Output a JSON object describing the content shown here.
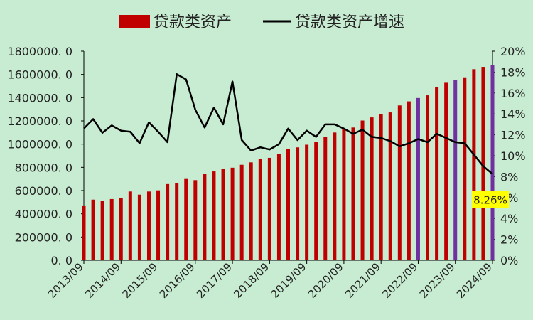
{
  "colors": {
    "background": "#c8ecd2",
    "bar": "#c00000",
    "bar_highlight": "#7030a0",
    "line": "#000000",
    "callout_bg": "#ffff00",
    "axis": "#000000",
    "text": "#222222"
  },
  "chart_data": {
    "type": "bar",
    "legend": [
      "贷款类资产",
      "贷款类资产增速"
    ],
    "legend_position": "top",
    "grid": false,
    "x": [
      "2013/09",
      "2013/12",
      "2014/03",
      "2014/06",
      "2014/09",
      "2014/12",
      "2015/03",
      "2015/06",
      "2015/09",
      "2015/12",
      "2016/03",
      "2016/06",
      "2016/09",
      "2016/12",
      "2017/03",
      "2017/06",
      "2017/09",
      "2017/12",
      "2018/03",
      "2018/06",
      "2018/09",
      "2018/12",
      "2019/03",
      "2019/06",
      "2019/09",
      "2019/12",
      "2020/03",
      "2020/06",
      "2020/09",
      "2020/12",
      "2021/03",
      "2021/06",
      "2021/09",
      "2021/12",
      "2022/03",
      "2022/06",
      "2022/09",
      "2022/12",
      "2023/03",
      "2023/06",
      "2023/09",
      "2023/12",
      "2024/03",
      "2024/06",
      "2024/09"
    ],
    "x_tick_labels": [
      "2013/09",
      "2014/09",
      "2015/09",
      "2016/09",
      "2017/09",
      "2018/09",
      "2019/09",
      "2020/09",
      "2021/09",
      "2022/09",
      "2023/09",
      "2024/09"
    ],
    "series": [
      {
        "name": "贷款类资产",
        "type": "bar",
        "axis": "left",
        "values": [
          472000,
          522000,
          510000,
          527000,
          537000,
          592000,
          565000,
          592000,
          602000,
          656000,
          665000,
          700000,
          690000,
          742000,
          765000,
          787000,
          797000,
          822000,
          843000,
          872000,
          882000,
          915000,
          957000,
          972000,
          995000,
          1020000,
          1065000,
          1100000,
          1128000,
          1143000,
          1203000,
          1230000,
          1255000,
          1273000,
          1333000,
          1368000,
          1397000,
          1420000,
          1490000,
          1528000,
          1552000,
          1575000,
          1645000,
          1665000,
          1680000
        ],
        "highlight": [
          "2022/09",
          "2023/09",
          "2024/09"
        ]
      },
      {
        "name": "贷款类资产增速",
        "type": "line",
        "axis": "right",
        "values": [
          12.6,
          13.5,
          12.2,
          12.9,
          12.4,
          12.3,
          11.2,
          13.2,
          12.3,
          11.3,
          17.8,
          17.3,
          14.4,
          12.7,
          14.6,
          13.0,
          17.1,
          11.5,
          10.5,
          10.8,
          10.6,
          11.1,
          12.6,
          11.5,
          12.4,
          11.8,
          13.0,
          13.0,
          12.6,
          12.1,
          12.5,
          11.8,
          11.7,
          11.4,
          10.9,
          11.2,
          11.6,
          11.3,
          12.1,
          11.7,
          11.3,
          11.2,
          10.1,
          9.0,
          8.26
        ]
      }
    ],
    "y_left": {
      "min": 0,
      "max": 1800000,
      "step": 200000,
      "tick_labels": [
        "0. 0",
        "200000. 0",
        "400000. 0",
        "600000. 0",
        "800000. 0",
        "1000000. 0",
        "1200000. 0",
        "1400000. 0",
        "1600000. 0",
        "1800000. 0"
      ]
    },
    "y_right": {
      "min": 0,
      "max": 20,
      "step": 2,
      "tick_labels": [
        "0%",
        "2%",
        "4%",
        "6%",
        "8%",
        "10%",
        "12%",
        "14%",
        "16%",
        "18%",
        "20%"
      ]
    },
    "annotation": {
      "text": "8.26%",
      "x": "2024/09",
      "value": 8.26,
      "axis": "right"
    }
  }
}
